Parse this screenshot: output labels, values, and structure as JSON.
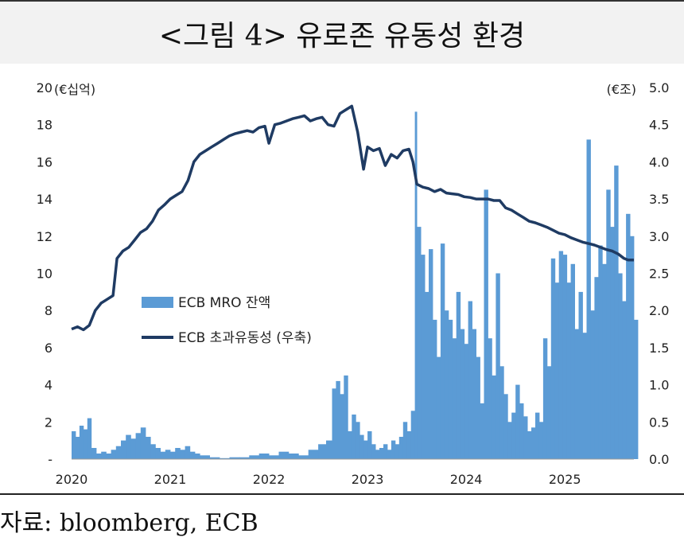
{
  "title": "<그림 4> 유로존 유동성 환경",
  "source": "자료: bloomberg, ECB",
  "chart_data": {
    "type": "bar+line",
    "left_axis": {
      "unit_label": "(€십억)",
      "ticks": [
        "-",
        "2",
        "4",
        "6",
        "8",
        "10",
        "12",
        "14",
        "16",
        "18",
        "20"
      ],
      "range": [
        0,
        20
      ]
    },
    "right_axis": {
      "unit_label": "(€조)",
      "ticks": [
        "0.0",
        "0.5",
        "1.0",
        "1.5",
        "2.0",
        "2.5",
        "3.0",
        "3.5",
        "4.0",
        "4.5",
        "5.0"
      ],
      "range": [
        0,
        5
      ]
    },
    "x_ticks": [
      "2020",
      "2021",
      "2022",
      "2023",
      "2024",
      "2025"
    ],
    "x_range": [
      2020.0,
      2025.7
    ],
    "legend": {
      "placement": "center-left",
      "entries": [
        "ECB MRO 잔액",
        "ECB 초과유동성 (우축)"
      ]
    },
    "colors": {
      "bars": "#5b9bd5",
      "line": "#1f3b63"
    },
    "series": [
      {
        "name": "ECB MRO 잔액",
        "axis": "left",
        "kind": "bar",
        "points": [
          [
            2020.0,
            1.5
          ],
          [
            2020.04,
            1.2
          ],
          [
            2020.08,
            1.8
          ],
          [
            2020.12,
            1.6
          ],
          [
            2020.16,
            2.2
          ],
          [
            2020.2,
            0.6
          ],
          [
            2020.25,
            0.3
          ],
          [
            2020.3,
            0.4
          ],
          [
            2020.35,
            0.3
          ],
          [
            2020.4,
            0.5
          ],
          [
            2020.45,
            0.7
          ],
          [
            2020.5,
            1.0
          ],
          [
            2020.55,
            1.3
          ],
          [
            2020.6,
            1.1
          ],
          [
            2020.65,
            1.4
          ],
          [
            2020.7,
            1.7
          ],
          [
            2020.75,
            1.2
          ],
          [
            2020.8,
            0.8
          ],
          [
            2020.85,
            0.6
          ],
          [
            2020.9,
            0.4
          ],
          [
            2020.95,
            0.5
          ],
          [
            2021.0,
            0.4
          ],
          [
            2021.05,
            0.6
          ],
          [
            2021.1,
            0.5
          ],
          [
            2021.15,
            0.7
          ],
          [
            2021.2,
            0.4
          ],
          [
            2021.25,
            0.3
          ],
          [
            2021.3,
            0.2
          ],
          [
            2021.4,
            0.1
          ],
          [
            2021.5,
            0.05
          ],
          [
            2021.6,
            0.1
          ],
          [
            2021.7,
            0.1
          ],
          [
            2021.8,
            0.2
          ],
          [
            2021.9,
            0.3
          ],
          [
            2022.0,
            0.2
          ],
          [
            2022.1,
            0.4
          ],
          [
            2022.2,
            0.3
          ],
          [
            2022.3,
            0.2
          ],
          [
            2022.4,
            0.5
          ],
          [
            2022.5,
            0.8
          ],
          [
            2022.58,
            1.0
          ],
          [
            2022.64,
            3.8
          ],
          [
            2022.68,
            4.2
          ],
          [
            2022.72,
            3.5
          ],
          [
            2022.76,
            4.5
          ],
          [
            2022.8,
            1.5
          ],
          [
            2022.84,
            2.4
          ],
          [
            2022.88,
            2.0
          ],
          [
            2022.92,
            1.3
          ],
          [
            2022.96,
            1.0
          ],
          [
            2023.0,
            1.5
          ],
          [
            2023.04,
            0.8
          ],
          [
            2023.08,
            0.5
          ],
          [
            2023.12,
            0.6
          ],
          [
            2023.16,
            0.8
          ],
          [
            2023.2,
            0.5
          ],
          [
            2023.24,
            1.0
          ],
          [
            2023.28,
            0.8
          ],
          [
            2023.32,
            1.2
          ],
          [
            2023.36,
            2.0
          ],
          [
            2023.4,
            1.5
          ],
          [
            2023.44,
            2.6
          ],
          [
            2023.48,
            18.7
          ],
          [
            2023.5,
            12.5
          ],
          [
            2023.54,
            11.0
          ],
          [
            2023.58,
            9.0
          ],
          [
            2023.62,
            11.3
          ],
          [
            2023.66,
            7.5
          ],
          [
            2023.7,
            5.5
          ],
          [
            2023.74,
            11.6
          ],
          [
            2023.78,
            8.0
          ],
          [
            2023.82,
            7.5
          ],
          [
            2023.86,
            6.5
          ],
          [
            2023.9,
            9.0
          ],
          [
            2023.94,
            7.0
          ],
          [
            2023.98,
            6.2
          ],
          [
            2024.02,
            8.5
          ],
          [
            2024.06,
            7.0
          ],
          [
            2024.1,
            5.5
          ],
          [
            2024.14,
            3.0
          ],
          [
            2024.18,
            14.5
          ],
          [
            2024.22,
            6.5
          ],
          [
            2024.26,
            4.5
          ],
          [
            2024.3,
            10.0
          ],
          [
            2024.34,
            5.0
          ],
          [
            2024.38,
            3.5
          ],
          [
            2024.42,
            2.0
          ],
          [
            2024.46,
            2.5
          ],
          [
            2024.5,
            4.0
          ],
          [
            2024.54,
            3.0
          ],
          [
            2024.58,
            2.3
          ],
          [
            2024.62,
            1.5
          ],
          [
            2024.66,
            1.7
          ],
          [
            2024.7,
            2.5
          ],
          [
            2024.74,
            2.0
          ],
          [
            2024.78,
            6.5
          ],
          [
            2024.82,
            5.0
          ],
          [
            2024.86,
            10.8
          ],
          [
            2024.9,
            9.5
          ],
          [
            2024.94,
            11.2
          ],
          [
            2024.98,
            11.0
          ],
          [
            2025.02,
            9.5
          ],
          [
            2025.06,
            10.5
          ],
          [
            2025.1,
            7.0
          ],
          [
            2025.14,
            9.0
          ],
          [
            2025.18,
            6.8
          ],
          [
            2025.22,
            17.2
          ],
          [
            2025.26,
            8.0
          ],
          [
            2025.3,
            9.8
          ],
          [
            2025.34,
            11.5
          ],
          [
            2025.38,
            10.5
          ],
          [
            2025.42,
            14.5
          ],
          [
            2025.46,
            12.5
          ],
          [
            2025.5,
            15.8
          ],
          [
            2025.54,
            10.0
          ],
          [
            2025.58,
            8.5
          ],
          [
            2025.62,
            13.2
          ],
          [
            2025.66,
            12.0
          ],
          [
            2025.7,
            7.5
          ]
        ]
      },
      {
        "name": "ECB 초과유동성 (우축)",
        "axis": "right",
        "kind": "line",
        "points": [
          [
            2020.0,
            1.75
          ],
          [
            2020.06,
            1.78
          ],
          [
            2020.12,
            1.74
          ],
          [
            2020.18,
            1.8
          ],
          [
            2020.24,
            2.0
          ],
          [
            2020.3,
            2.1
          ],
          [
            2020.36,
            2.15
          ],
          [
            2020.42,
            2.2
          ],
          [
            2020.46,
            2.7
          ],
          [
            2020.52,
            2.8
          ],
          [
            2020.58,
            2.85
          ],
          [
            2020.64,
            2.95
          ],
          [
            2020.7,
            3.05
          ],
          [
            2020.76,
            3.1
          ],
          [
            2020.82,
            3.2
          ],
          [
            2020.88,
            3.35
          ],
          [
            2020.94,
            3.42
          ],
          [
            2021.0,
            3.5
          ],
          [
            2021.06,
            3.55
          ],
          [
            2021.12,
            3.6
          ],
          [
            2021.18,
            3.75
          ],
          [
            2021.24,
            4.0
          ],
          [
            2021.3,
            4.1
          ],
          [
            2021.36,
            4.15
          ],
          [
            2021.42,
            4.2
          ],
          [
            2021.48,
            4.25
          ],
          [
            2021.54,
            4.3
          ],
          [
            2021.6,
            4.35
          ],
          [
            2021.66,
            4.38
          ],
          [
            2021.72,
            4.4
          ],
          [
            2021.78,
            4.42
          ],
          [
            2021.84,
            4.4
          ],
          [
            2021.9,
            4.46
          ],
          [
            2021.96,
            4.48
          ],
          [
            2022.0,
            4.25
          ],
          [
            2022.06,
            4.5
          ],
          [
            2022.12,
            4.52
          ],
          [
            2022.18,
            4.55
          ],
          [
            2022.24,
            4.58
          ],
          [
            2022.3,
            4.6
          ],
          [
            2022.36,
            4.62
          ],
          [
            2022.42,
            4.55
          ],
          [
            2022.48,
            4.58
          ],
          [
            2022.54,
            4.6
          ],
          [
            2022.6,
            4.5
          ],
          [
            2022.66,
            4.48
          ],
          [
            2022.72,
            4.65
          ],
          [
            2022.78,
            4.7
          ],
          [
            2022.84,
            4.75
          ],
          [
            2022.9,
            4.4
          ],
          [
            2022.96,
            3.9
          ],
          [
            2023.0,
            4.2
          ],
          [
            2023.06,
            4.15
          ],
          [
            2023.12,
            4.18
          ],
          [
            2023.18,
            3.95
          ],
          [
            2023.24,
            4.1
          ],
          [
            2023.3,
            4.05
          ],
          [
            2023.36,
            4.15
          ],
          [
            2023.42,
            4.17
          ],
          [
            2023.46,
            4.0
          ],
          [
            2023.5,
            3.7
          ],
          [
            2023.56,
            3.66
          ],
          [
            2023.62,
            3.64
          ],
          [
            2023.68,
            3.6
          ],
          [
            2023.74,
            3.63
          ],
          [
            2023.8,
            3.58
          ],
          [
            2023.86,
            3.57
          ],
          [
            2023.92,
            3.56
          ],
          [
            2023.98,
            3.53
          ],
          [
            2024.04,
            3.52
          ],
          [
            2024.1,
            3.5
          ],
          [
            2024.16,
            3.5
          ],
          [
            2024.22,
            3.5
          ],
          [
            2024.28,
            3.48
          ],
          [
            2024.34,
            3.48
          ],
          [
            2024.4,
            3.38
          ],
          [
            2024.46,
            3.35
          ],
          [
            2024.52,
            3.3
          ],
          [
            2024.58,
            3.25
          ],
          [
            2024.64,
            3.2
          ],
          [
            2024.7,
            3.18
          ],
          [
            2024.76,
            3.15
          ],
          [
            2024.82,
            3.12
          ],
          [
            2024.88,
            3.08
          ],
          [
            2024.94,
            3.04
          ],
          [
            2025.0,
            3.02
          ],
          [
            2025.06,
            2.98
          ],
          [
            2025.12,
            2.95
          ],
          [
            2025.18,
            2.92
          ],
          [
            2025.24,
            2.9
          ],
          [
            2025.3,
            2.88
          ],
          [
            2025.36,
            2.85
          ],
          [
            2025.42,
            2.82
          ],
          [
            2025.48,
            2.8
          ],
          [
            2025.54,
            2.76
          ],
          [
            2025.6,
            2.7
          ],
          [
            2025.64,
            2.68
          ],
          [
            2025.68,
            2.68
          ],
          [
            2025.7,
            2.68
          ]
        ]
      }
    ]
  }
}
